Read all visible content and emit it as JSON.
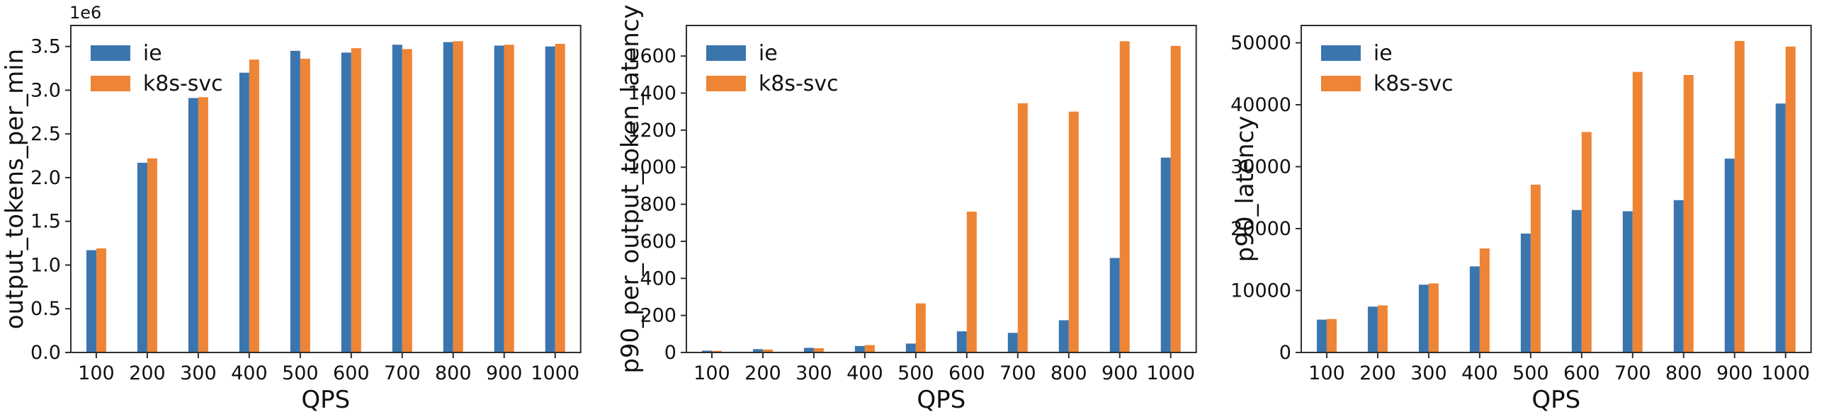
{
  "figure": {
    "background": "#ffffff",
    "text_color": "#111111",
    "spine_color": "#2e2e2e",
    "series_colors": {
      "ie": "#3B75AE",
      "k8s-svc": "#EE8435"
    }
  },
  "legend": {
    "items": [
      {
        "label": "ie",
        "color": "#3B75AE"
      },
      {
        "label": "k8s-svc",
        "color": "#EE8435"
      }
    ],
    "position": "upper left",
    "frame": false
  },
  "chart_data": [
    {
      "type": "bar",
      "title": "",
      "xlabel": "QPS",
      "ylabel": "output_tokens_per_min",
      "offset_label": "1e6",
      "categories": [
        "100",
        "200",
        "300",
        "400",
        "500",
        "600",
        "700",
        "800",
        "900",
        "1000"
      ],
      "series": [
        {
          "name": "ie",
          "color": "#3B75AE",
          "values": [
            1170000,
            2170000,
            2910000,
            3200000,
            3450000,
            3430000,
            3520000,
            3550000,
            3510000,
            3500000
          ]
        },
        {
          "name": "k8s-svc",
          "color": "#EE8435",
          "values": [
            1190000,
            2220000,
            2920000,
            3350000,
            3360000,
            3480000,
            3470000,
            3560000,
            3520000,
            3530000
          ]
        }
      ],
      "ylim": [
        0,
        3740000
      ],
      "yticks": [
        0,
        500000,
        1000000,
        1500000,
        2000000,
        2500000,
        3000000,
        3500000
      ],
      "ytick_labels": [
        "0.0",
        "0.5",
        "1.0",
        "1.5",
        "2.0",
        "2.5",
        "3.0",
        "3.5"
      ],
      "grid": false,
      "legend_position": "upper left"
    },
    {
      "type": "bar",
      "title": "",
      "xlabel": "QPS",
      "ylabel": "p90_per_output_token_latency",
      "offset_label": "",
      "categories": [
        "100",
        "200",
        "300",
        "400",
        "500",
        "600",
        "700",
        "800",
        "900",
        "1000"
      ],
      "series": [
        {
          "name": "ie",
          "color": "#3B75AE",
          "values": [
            10,
            18,
            25,
            35,
            48,
            114,
            106,
            174,
            510,
            1052
          ]
        },
        {
          "name": "k8s-svc",
          "color": "#EE8435",
          "values": [
            9,
            16,
            23,
            40,
            265,
            760,
            1345,
            1300,
            1680,
            1655
          ]
        }
      ],
      "ylim": [
        0,
        1765
      ],
      "yticks": [
        0,
        200,
        400,
        600,
        800,
        1000,
        1200,
        1400,
        1600
      ],
      "ytick_labels": [
        "0",
        "200",
        "400",
        "600",
        "800",
        "1000",
        "1200",
        "1400",
        "1600"
      ],
      "grid": false,
      "legend_position": "upper left"
    },
    {
      "type": "bar",
      "title": "",
      "xlabel": "QPS",
      "ylabel": "p90_latency",
      "offset_label": "",
      "categories": [
        "100",
        "200",
        "300",
        "400",
        "500",
        "600",
        "700",
        "800",
        "900",
        "1000"
      ],
      "series": [
        {
          "name": "ie",
          "color": "#3B75AE",
          "values": [
            5300,
            7400,
            10950,
            13900,
            19200,
            23000,
            22800,
            24600,
            31300,
            40200
          ]
        },
        {
          "name": "k8s-svc",
          "color": "#EE8435",
          "values": [
            5400,
            7600,
            11150,
            16800,
            27100,
            35600,
            45300,
            44800,
            50300,
            49400
          ]
        }
      ],
      "ylim": [
        0,
        52800
      ],
      "yticks": [
        0,
        10000,
        20000,
        30000,
        40000,
        50000
      ],
      "ytick_labels": [
        "0",
        "10000",
        "20000",
        "30000",
        "40000",
        "50000"
      ],
      "grid": false,
      "legend_position": "upper left"
    }
  ]
}
